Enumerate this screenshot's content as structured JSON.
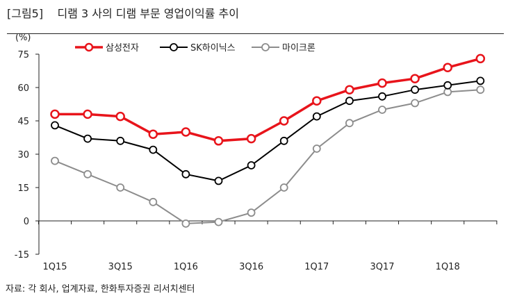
{
  "header": {
    "figure_label": "[그림5]",
    "title": "디램 3 사의 디램 부문 영업이익률 추이"
  },
  "source": "자료: 각 회사, 업계자료, 한화투자증권 리서치센터",
  "chart_data": {
    "type": "line",
    "title": "디램 3 사의 디램 부문 영업이익률 추이",
    "ylabel": "(%)",
    "ylim": [
      -15,
      75
    ],
    "yticks": [
      75,
      60,
      45,
      30,
      15,
      0,
      -15
    ],
    "x": [
      "1Q15",
      "2Q15",
      "3Q15",
      "4Q15",
      "1Q16",
      "2Q16",
      "3Q16",
      "4Q16",
      "1Q17",
      "2Q17",
      "3Q17",
      "4Q17",
      "1Q18",
      "2Q18"
    ],
    "xtick_labels": [
      "1Q15",
      "3Q15",
      "1Q16",
      "3Q16",
      "1Q17",
      "3Q17",
      "1Q18"
    ],
    "legend_position": "top",
    "series": [
      {
        "name": "삼성전자",
        "color": "#e8141b",
        "values": [
          48,
          48,
          47,
          39,
          40,
          36,
          37,
          45,
          54,
          59,
          62,
          64,
          69,
          73
        ]
      },
      {
        "name": "SK하이닉스",
        "color": "#000000",
        "values": [
          43,
          37,
          36,
          32,
          21,
          18,
          25,
          36,
          47,
          54,
          56,
          59,
          61,
          63
        ]
      },
      {
        "name": "마이크론",
        "color": "#8c8c8c",
        "values": [
          27,
          21,
          15,
          8.5,
          -1.2,
          -0.5,
          3.7,
          15,
          32.5,
          44,
          50,
          53,
          58,
          59
        ]
      }
    ]
  }
}
